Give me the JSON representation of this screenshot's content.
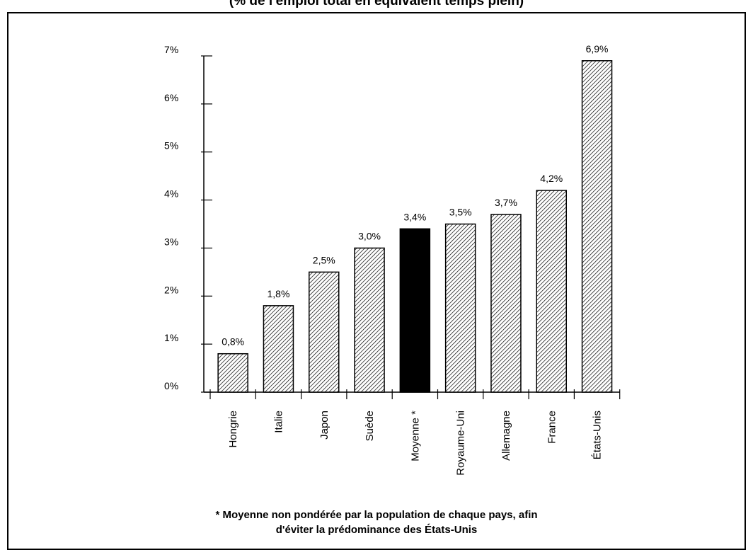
{
  "title": "(% de l'emploi total en équivalent temps plein)",
  "footnote_line1": "* Moyenne non pondérée par la population de chaque pays, afin",
  "footnote_line2": "d'éviter la prédominance des États-Unis",
  "chart_data": {
    "type": "bar",
    "categories": [
      "Hongrie",
      "Italie",
      "Japon",
      "Suède",
      "Moyenne *",
      "Royaume-Uni",
      "Allemagne",
      "France",
      "États-Unis"
    ],
    "values": [
      0.8,
      1.8,
      2.5,
      3.0,
      3.4,
      3.5,
      3.7,
      4.2,
      6.9
    ],
    "data_labels": [
      "0,8%",
      "1,8%",
      "2,5%",
      "3,0%",
      "3,4%",
      "3,5%",
      "3,7%",
      "4,2%",
      "6,9%"
    ],
    "highlight_index": 4,
    "ylim": [
      0,
      7
    ],
    "yticks": [
      0,
      1,
      2,
      3,
      4,
      5,
      6,
      7
    ],
    "ytick_labels": [
      "0%",
      "1%",
      "2%",
      "3%",
      "4%",
      "5%",
      "6%",
      "7%"
    ],
    "colors": {
      "bar_fill": "hatched",
      "highlight_fill": "#000000",
      "stroke": "#000000"
    },
    "grid": false,
    "legend": "none"
  }
}
